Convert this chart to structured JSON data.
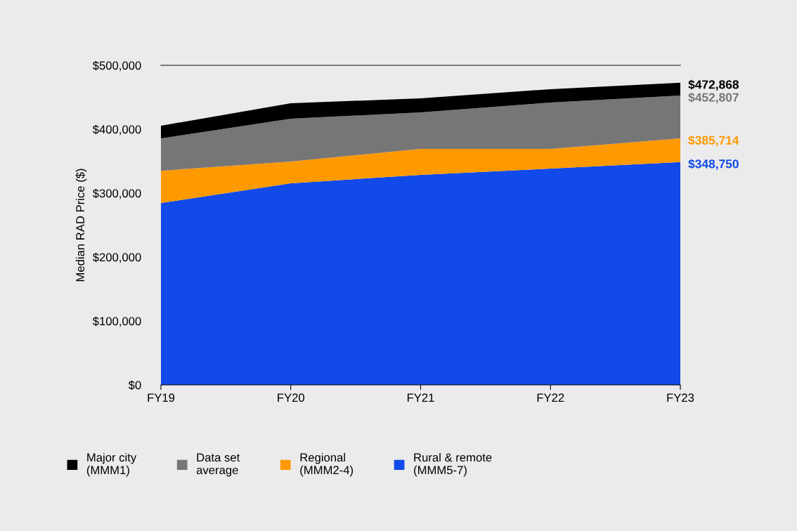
{
  "chart_data": {
    "type": "area",
    "ylabel": "Median RAD Price ($)",
    "categories": [
      "FY19",
      "FY20",
      "FY21",
      "FY22",
      "FY23"
    ],
    "series": [
      {
        "name": "Rural & remote\n(MMM5-7)",
        "color": "#114ae8",
        "values": [
          284600,
          315400,
          328600,
          338500,
          348750
        ],
        "value_labels": [
          null,
          null,
          null,
          null,
          "$348,750"
        ]
      },
      {
        "name": "Regional\n(MMM2-4)",
        "color": "#ff9900",
        "values": [
          335000,
          349500,
          369200,
          369200,
          385714
        ],
        "value_labels": [
          null,
          null,
          null,
          null,
          "$385,714"
        ]
      },
      {
        "name": "Data set\naverage",
        "color": "#767676",
        "values": [
          385700,
          416500,
          426400,
          441800,
          452807
        ],
        "value_labels": [
          null,
          null,
          null,
          null,
          "$452,807"
        ]
      },
      {
        "name": "Major city\n(MMM1)",
        "color": "#000000",
        "values": [
          405500,
          440700,
          448400,
          462700,
          472868
        ],
        "value_labels": [
          null,
          null,
          null,
          null,
          "$472,868"
        ]
      }
    ],
    "ylim": [
      0,
      500000
    ],
    "yticks": [
      {
        "value": 0,
        "label": "$0"
      },
      {
        "value": 100000,
        "label": "$100,000"
      },
      {
        "value": 200000,
        "label": "$200,000"
      },
      {
        "value": 300000,
        "label": "$300,000"
      },
      {
        "value": 400000,
        "label": "$400,000"
      },
      {
        "value": 500000,
        "label": "$500,000"
      }
    ],
    "ref_lines": [
      {
        "axis": "y",
        "value": 500000,
        "color": "#555555"
      }
    ],
    "legend": "bottom",
    "grid": false
  }
}
